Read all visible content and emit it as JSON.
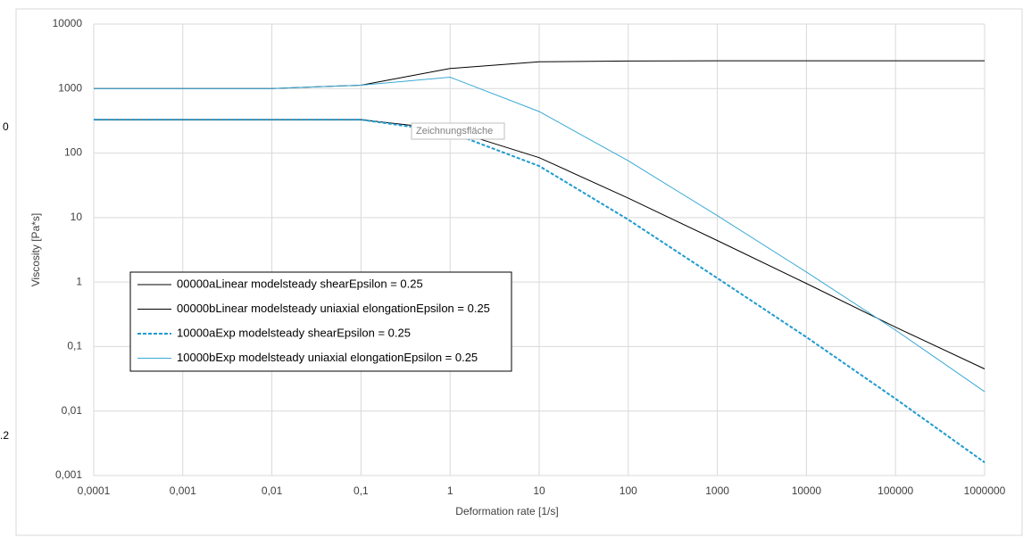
{
  "sheet_cells": [
    "0",
    ".2"
  ],
  "tooltip": "Zeichnungsfläche",
  "chart_data": {
    "type": "line",
    "x_label": "Deformation rate   [1/s]",
    "y_label": "Viscosity   [Pa*s]",
    "xscale": "log",
    "yscale": "log",
    "grid": true,
    "legend": "left",
    "x": [
      0.0001,
      0.001,
      0.01,
      0.1,
      1,
      10,
      100,
      1000,
      10000,
      100000,
      1000000
    ],
    "xlim": [
      0.0001,
      1000000
    ],
    "xticks": [
      {
        "value": 0.0001,
        "label": "0,0001"
      },
      {
        "value": 0.001,
        "label": "0,001"
      },
      {
        "value": 0.01,
        "label": "0,01"
      },
      {
        "value": 0.1,
        "label": "0,1"
      },
      1,
      10,
      100,
      1000,
      10000,
      100000,
      1000000
    ],
    "ylim": [
      0.001,
      10000
    ],
    "yticks": [
      {
        "value": 0.001,
        "label": "0,001"
      },
      {
        "value": 0.01,
        "label": "0,01"
      },
      {
        "value": 0.1,
        "label": "0,1"
      },
      1,
      10,
      100,
      1000,
      10000
    ],
    "series": [
      {
        "name": "00000aLinear modelsteady shearEpsilon = 0.25",
        "color": "#000000",
        "values": [
          330,
          330,
          330,
          330,
          230,
          85,
          20,
          4.4,
          0.95,
          0.2,
          0.045
        ]
      },
      {
        "name": "00000bLinear modelsteady uniaxial elongationEpsilon = 0.25",
        "color": "#000000",
        "values": [
          1000,
          1000,
          1000,
          1130,
          2050,
          2600,
          2680,
          2700,
          2700,
          2700,
          2700
        ]
      },
      {
        "name": "10000aExp modelsteady shearEpsilon = 0.25",
        "color": "#1f9bcf",
        "dash": true,
        "values": [
          330,
          330,
          330,
          330,
          210,
          63,
          9.3,
          1.15,
          0.14,
          0.0155,
          0.0016
        ]
      },
      {
        "name": "10000bExp modelsteady uniaxial elongationEpsilon = 0.25",
        "color": "#3aa9d6",
        "values": [
          1000,
          1000,
          1000,
          1130,
          1500,
          441,
          76,
          10.7,
          1.43,
          0.18,
          0.02
        ]
      }
    ]
  }
}
